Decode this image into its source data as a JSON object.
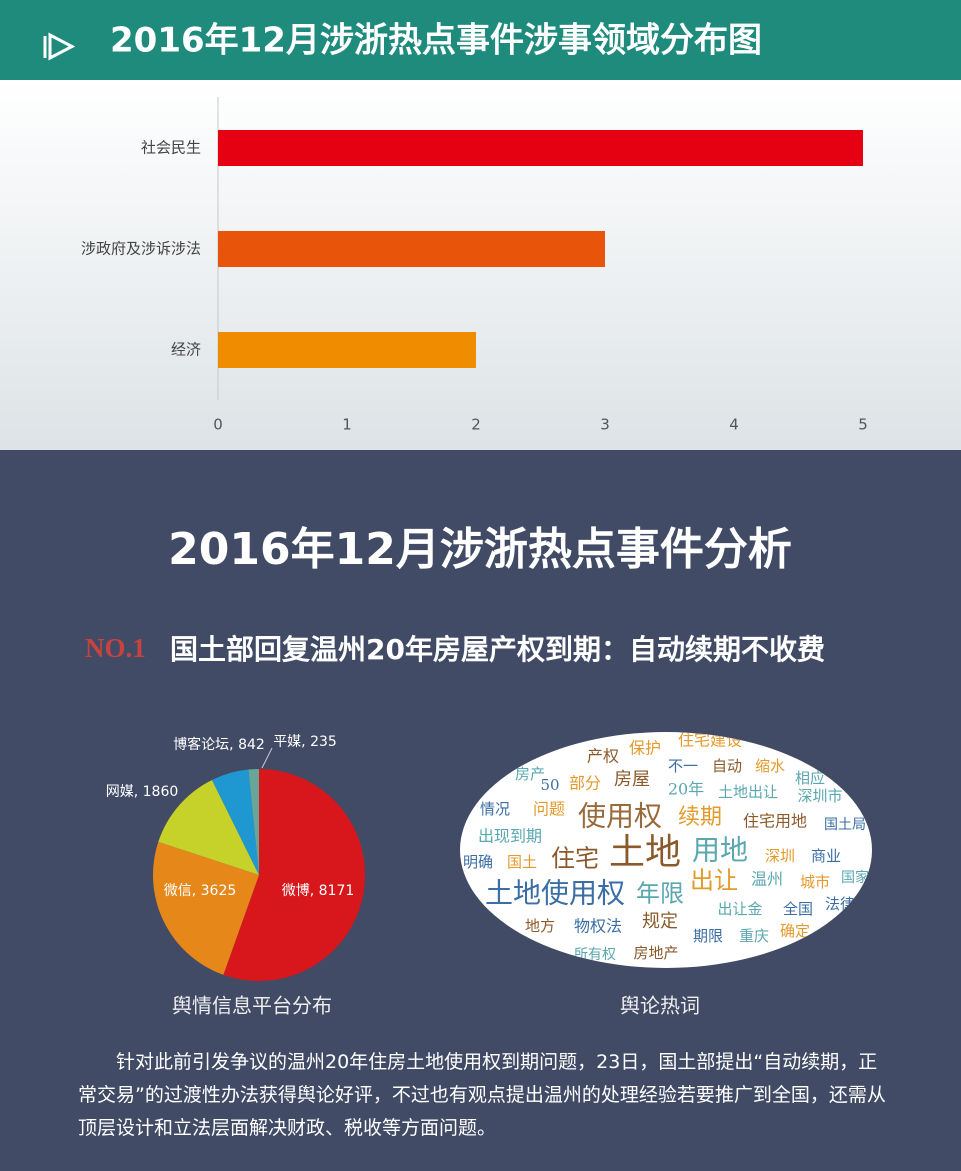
{
  "header": {
    "title": "2016年12月涉浙热点事件涉事领域分布图"
  },
  "chart_data": [
    {
      "type": "bar",
      "orientation": "horizontal",
      "categories": [
        "社会民生",
        "涉政府及涉诉涉法",
        "经济"
      ],
      "values": [
        5,
        3,
        2
      ],
      "colors": [
        "#e50012",
        "#e9540b",
        "#f08c00"
      ],
      "xlim": [
        0,
        5
      ],
      "xticks": [
        0,
        1,
        2,
        3,
        4,
        5
      ]
    },
    {
      "type": "pie",
      "title": "舆情信息平台分布",
      "categories": [
        "微博",
        "微信",
        "网媒",
        "博客论坛",
        "平媒"
      ],
      "values": [
        8171,
        3625,
        1860,
        842,
        235
      ],
      "value_labels": [
        "微博, 8171",
        "微信, 3625",
        "网媒, 1860",
        "博客论坛, 842",
        "平媒, 235"
      ],
      "colors": [
        "#d7171b",
        "#e6871a",
        "#c6d12a",
        "#1f98d2",
        "#68a699"
      ]
    }
  ],
  "analysis": {
    "title": "2016年12月涉浙热点事件分析",
    "item_number": "NO.1",
    "item_title": "国土部回复温州20年房屋产权到期：自动续期不收费",
    "word_cloud": {
      "title": "舆论热词",
      "words": [
        "土地",
        "使用权",
        "土地使用权",
        "用地",
        "年限",
        "出让",
        "住宅",
        "续期",
        "房屋",
        "产权",
        "保护",
        "住宅建设",
        "不一",
        "自动",
        "缩水",
        "相应",
        "20年",
        "土地出让",
        "深圳市",
        "部分",
        "房产",
        "50",
        "情况",
        "问题",
        "住宅用地",
        "国土局",
        "出现到期",
        "明确",
        "国土",
        "深圳",
        "商业",
        "温州",
        "城市",
        "国家",
        "出让金",
        "全国",
        "法律",
        "规定",
        "物权法",
        "地方",
        "期限",
        "重庆",
        "确定",
        "房地产",
        "所有权"
      ]
    },
    "paragraph": "针对此前引发争议的温州20年住房土地使用权到期问题，23日，国土部提出“自动续期，正常交易”的过渡性办法获得舆论好评，不过也有观点提出温州的处理经验若要推广到全国，还需从顶层设计和立法层面解决财政、税收等方面问题。"
  }
}
